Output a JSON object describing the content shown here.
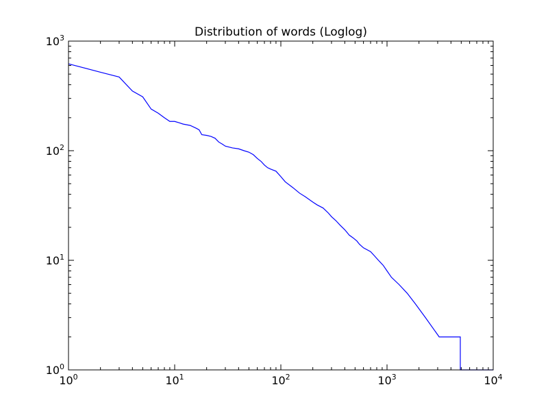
{
  "chart_data": {
    "type": "line",
    "title": "Distribution of words (Loglog)",
    "xlabel": "",
    "ylabel": "",
    "xscale": "log",
    "yscale": "log",
    "xlim": [
      1,
      10000
    ],
    "ylim": [
      1,
      1000
    ],
    "grid": false,
    "legend": "none",
    "line_color": "#0000ff",
    "x_ticks": [
      {
        "base": "10",
        "exp": "0",
        "value": 1
      },
      {
        "base": "10",
        "exp": "1",
        "value": 10
      },
      {
        "base": "10",
        "exp": "2",
        "value": 100
      },
      {
        "base": "10",
        "exp": "3",
        "value": 1000
      },
      {
        "base": "10",
        "exp": "4",
        "value": 10000
      }
    ],
    "y_ticks": [
      {
        "base": "10",
        "exp": "0",
        "value": 1
      },
      {
        "base": "10",
        "exp": "1",
        "value": 10
      },
      {
        "base": "10",
        "exp": "2",
        "value": 100
      },
      {
        "base": "10",
        "exp": "3",
        "value": 1000
      }
    ],
    "series": [
      {
        "points": [
          [
            1,
            620
          ],
          [
            2,
            520
          ],
          [
            3,
            470
          ],
          [
            4,
            350
          ],
          [
            5,
            310
          ],
          [
            6,
            240
          ],
          [
            7,
            220
          ],
          [
            8,
            200
          ],
          [
            9,
            185
          ],
          [
            10,
            185
          ],
          [
            11,
            180
          ],
          [
            12,
            175
          ],
          [
            14,
            170
          ],
          [
            16,
            160
          ],
          [
            17,
            155
          ],
          [
            18,
            140
          ],
          [
            20,
            138
          ],
          [
            22,
            135
          ],
          [
            24,
            130
          ],
          [
            26,
            120
          ],
          [
            28,
            115
          ],
          [
            30,
            110
          ],
          [
            35,
            106
          ],
          [
            40,
            104
          ],
          [
            45,
            100
          ],
          [
            50,
            97
          ],
          [
            55,
            92
          ],
          [
            60,
            85
          ],
          [
            65,
            80
          ],
          [
            70,
            74
          ],
          [
            75,
            70
          ],
          [
            80,
            68
          ],
          [
            90,
            65
          ],
          [
            100,
            58
          ],
          [
            110,
            52
          ],
          [
            130,
            46
          ],
          [
            150,
            41
          ],
          [
            170,
            38
          ],
          [
            200,
            34
          ],
          [
            220,
            32
          ],
          [
            250,
            30
          ],
          [
            280,
            27
          ],
          [
            300,
            25
          ],
          [
            330,
            23
          ],
          [
            360,
            21
          ],
          [
            400,
            19
          ],
          [
            440,
            17
          ],
          [
            480,
            16
          ],
          [
            520,
            15
          ],
          [
            550,
            14
          ],
          [
            600,
            13
          ],
          [
            700,
            12
          ],
          [
            760,
            11
          ],
          [
            830,
            10
          ],
          [
            920,
            9
          ],
          [
            1000,
            8
          ],
          [
            1100,
            7
          ],
          [
            1300,
            6
          ],
          [
            1550,
            5
          ],
          [
            1850,
            4
          ],
          [
            2300,
            3
          ],
          [
            3100,
            2
          ],
          [
            4900,
            2
          ],
          [
            4900,
            1
          ],
          [
            10000,
            1
          ]
        ],
        "interpolation": "steps-post"
      }
    ]
  }
}
